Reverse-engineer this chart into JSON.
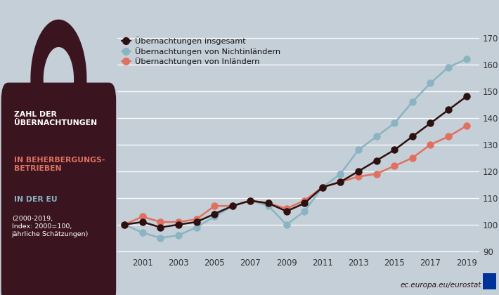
{
  "years": [
    2000,
    2001,
    2002,
    2003,
    2004,
    2005,
    2006,
    2007,
    2008,
    2009,
    2010,
    2011,
    2012,
    2013,
    2014,
    2015,
    2016,
    2017,
    2018,
    2019
  ],
  "insgesamt": [
    100,
    101,
    99,
    100,
    101,
    104,
    107,
    109,
    108,
    105,
    108,
    114,
    116,
    120,
    124,
    128,
    133,
    138,
    143,
    148
  ],
  "nichtinlaender": [
    100,
    97,
    95,
    96,
    99,
    103,
    107,
    109,
    107,
    100,
    105,
    114,
    119,
    128,
    133,
    138,
    146,
    153,
    159,
    162
  ],
  "inlaender": [
    100,
    103,
    101,
    101,
    102,
    107,
    107,
    109,
    108,
    106,
    109,
    114,
    116,
    118,
    119,
    122,
    125,
    130,
    133,
    137
  ],
  "color_insgesamt": "#2d1010",
  "color_nichtinlaender": "#8ab4c2",
  "color_inlaender": "#e07060",
  "background_color": "#c5cfd8",
  "ylim": [
    88,
    172
  ],
  "yticks": [
    90,
    100,
    110,
    120,
    130,
    140,
    150,
    160,
    170
  ],
  "legend_insgesamt": "Übernachtungen insgesamt",
  "legend_nichtinlaender": "Übernachtungen von Nichtinländern",
  "legend_inlaender": "Übernachtungen von Inländern",
  "tag_color": "#3a1520",
  "tag_text_white": "ZAHL DER\nÜBERNACHTUNGEN",
  "tag_text_salmon": "IN BEHERBERGUNGS-\nBETRIEBEN",
  "tag_text_blue": "IN DER EU",
  "tag_subtitle": "(2000-2019,\nIndex: 2000=100,\njährliche Schätzungen)",
  "footer_text": "ec.europa.eu/eurostat",
  "footer_color": "#2d1010"
}
